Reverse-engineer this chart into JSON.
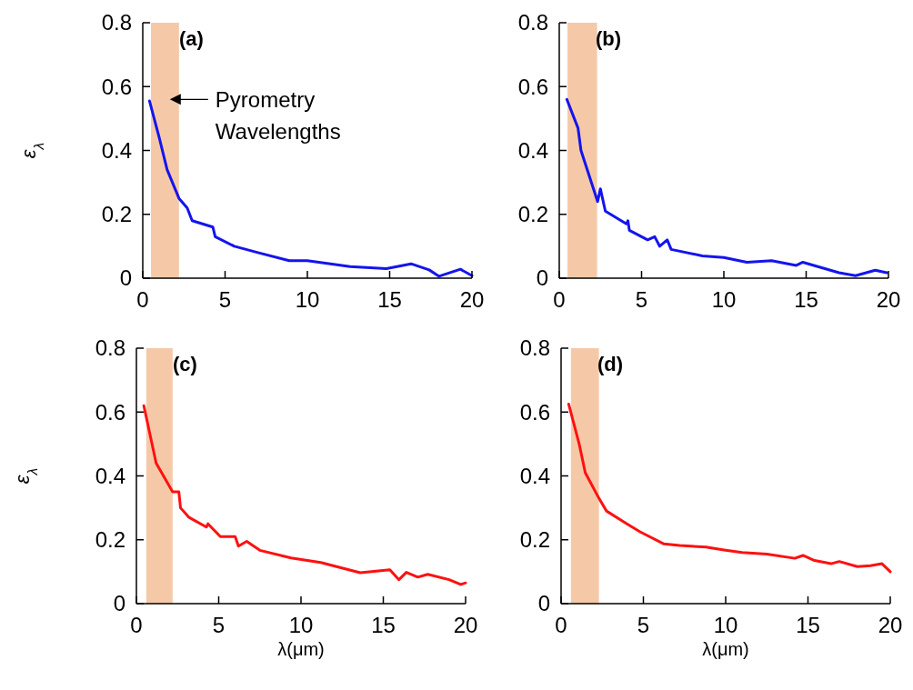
{
  "chart_data": [
    {
      "type": "line",
      "ylabel": "ε$_{λ}$",
      "xlim": [
        0,
        20
      ],
      "xticks": [
        0,
        5,
        10,
        15,
        20
      ],
      "ylim": [
        0,
        0.8
      ],
      "yticks": [
        0,
        0.2,
        0.4,
        0.6,
        0.8
      ],
      "annotations": [
        "(a)"
      ],
      "bands": [
        {
          "axis": "x",
          "from": 0.5,
          "to": 2.2,
          "label": "Pyrometry Wavelengths",
          "color": "#f5c9a8"
        }
      ],
      "series": [
        {
          "color": "#1414ee",
          "x": [
            0.41,
            1.0,
            1.48,
            2.2,
            2.7,
            3.0,
            4.26,
            4.4,
            5.56,
            7.0,
            8.9,
            10,
            12.6,
            14.8,
            16.3,
            17.4,
            18.0,
            19.3,
            20
          ],
          "values": [
            0.555,
            0.44,
            0.34,
            0.25,
            0.22,
            0.18,
            0.16,
            0.13,
            0.1,
            0.08,
            0.055,
            0.055,
            0.036,
            0.03,
            0.045,
            0.026,
            0.006,
            0.028,
            0.008
          ]
        }
      ]
    },
    {
      "type": "line",
      "xlim": [
        0,
        20
      ],
      "xticks": [
        0,
        5,
        10,
        15,
        20
      ],
      "ylim": [
        0,
        0.8
      ],
      "yticks": [
        0,
        0.2,
        0.4,
        0.6,
        0.8
      ],
      "annotations": [
        "(b)"
      ],
      "bands": [
        {
          "axis": "x",
          "from": 0.5,
          "to": 2.3,
          "color": "#f5c9a8"
        }
      ],
      "series": [
        {
          "color": "#1414ee",
          "x": [
            0.46,
            1.14,
            1.32,
            2.33,
            2.5,
            2.8,
            4.08,
            4.17,
            4.26,
            5.37,
            5.8,
            6.1,
            6.56,
            6.8,
            8.7,
            10,
            11.4,
            12.9,
            14.4,
            14.8,
            17,
            18,
            19.2,
            19.9
          ],
          "values": [
            0.56,
            0.47,
            0.4,
            0.24,
            0.28,
            0.21,
            0.17,
            0.18,
            0.15,
            0.12,
            0.13,
            0.1,
            0.12,
            0.09,
            0.07,
            0.065,
            0.05,
            0.055,
            0.04,
            0.05,
            0.017,
            0.008,
            0.025,
            0.017
          ]
        }
      ]
    },
    {
      "type": "line",
      "ylabel": "ε$_{λ}$",
      "xlabel": "λ(μm)",
      "xlim": [
        0,
        20
      ],
      "xticks": [
        0,
        5,
        10,
        15,
        20
      ],
      "ylim": [
        0,
        0.8
      ],
      "yticks": [
        0,
        0.2,
        0.4,
        0.6,
        0.8
      ],
      "annotations": [
        "(c)"
      ],
      "bands": [
        {
          "axis": "x",
          "from": 0.6,
          "to": 2.2,
          "color": "#f5c9a8"
        }
      ],
      "series": [
        {
          "color": "#ff1010",
          "x": [
            0.45,
            1.2,
            2.2,
            2.58,
            2.68,
            3.2,
            4.25,
            4.35,
            5.1,
            6.0,
            6.2,
            6.7,
            7.5,
            9.4,
            11.2,
            13.6,
            15.4,
            15.95,
            16.4,
            17.1,
            17.7,
            19.0,
            19.7,
            20
          ],
          "values": [
            0.62,
            0.44,
            0.35,
            0.35,
            0.3,
            0.27,
            0.24,
            0.25,
            0.21,
            0.21,
            0.18,
            0.195,
            0.167,
            0.143,
            0.129,
            0.097,
            0.106,
            0.075,
            0.098,
            0.083,
            0.092,
            0.075,
            0.06,
            0.065
          ]
        }
      ]
    },
    {
      "type": "line",
      "xlabel": "λ(μm)",
      "xlim": [
        0,
        20
      ],
      "xticks": [
        0,
        5,
        10,
        15,
        20
      ],
      "ylim": [
        0,
        0.8
      ],
      "yticks": [
        0,
        0.2,
        0.4,
        0.6,
        0.8
      ],
      "annotations": [
        "(d)"
      ],
      "bands": [
        {
          "axis": "x",
          "from": 0.6,
          "to": 2.3,
          "color": "#f5c9a8"
        }
      ],
      "series": [
        {
          "color": "#ff1010",
          "x": [
            0.46,
            1.1,
            1.47,
            2.3,
            2.76,
            4.0,
            4.8,
            6.25,
            7.2,
            8.8,
            9.9,
            11.0,
            12.5,
            14.2,
            14.7,
            15.4,
            16.4,
            16.9,
            18.0,
            18.8,
            19.5,
            20
          ],
          "values": [
            0.625,
            0.5,
            0.41,
            0.33,
            0.29,
            0.25,
            0.225,
            0.187,
            0.182,
            0.177,
            0.168,
            0.16,
            0.155,
            0.142,
            0.151,
            0.135,
            0.125,
            0.132,
            0.116,
            0.119,
            0.125,
            0.1
          ]
        }
      ]
    }
  ]
}
